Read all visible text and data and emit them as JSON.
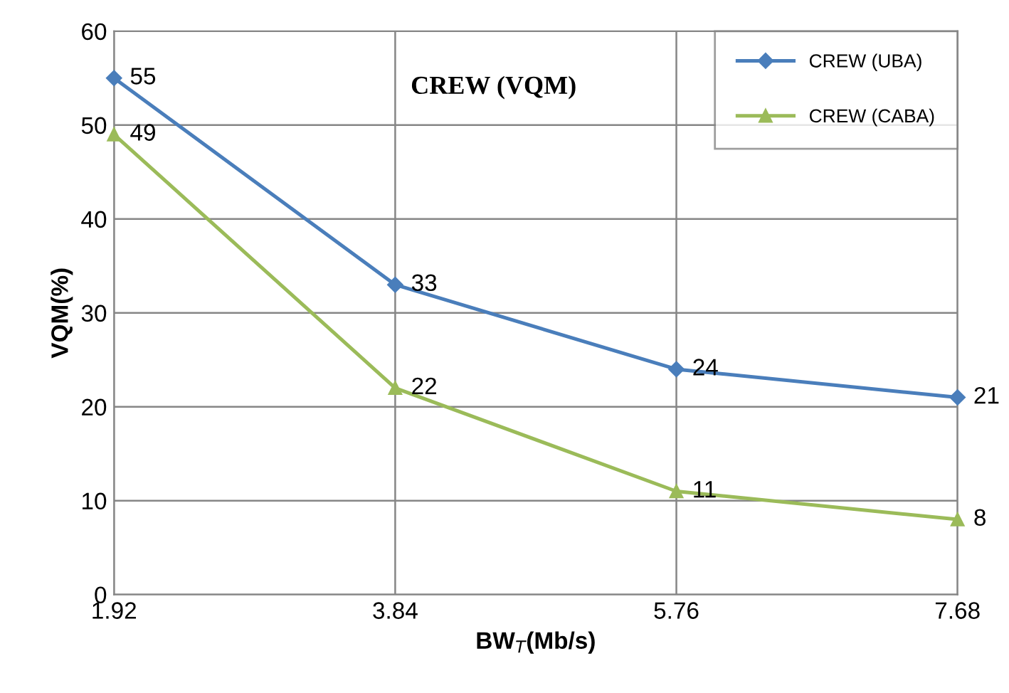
{
  "chart_data": {
    "type": "line",
    "title": "CREW (VQM)",
    "xlabel": "BW$_{T}$(Mb/s)",
    "ylabel": "VQM(%)",
    "x": [
      1.92,
      3.84,
      5.76,
      7.68
    ],
    "xlim": [
      1.92,
      7.68
    ],
    "xticks": [
      {
        "value": 1.92,
        "label": "1.92"
      },
      {
        "value": 3.84,
        "label": "3.84"
      },
      {
        "value": 5.76,
        "label": "5.76"
      },
      {
        "value": 7.68,
        "label": "7.68"
      }
    ],
    "ylim": [
      0,
      60
    ],
    "yticks": [
      0,
      10,
      20,
      30,
      40,
      50,
      60
    ],
    "grid": true,
    "legend": "top right",
    "data_labels": true,
    "line_style": "solid",
    "series": [
      {
        "name": "CREW (UBA)",
        "color": "#4a7ebb",
        "marker": "diamond",
        "values": [
          55,
          33,
          24,
          21
        ]
      },
      {
        "name": "CREW (CABA)",
        "color": "#9bbb59",
        "marker": "triangle",
        "values": [
          49,
          22,
          11,
          8
        ]
      }
    ]
  }
}
